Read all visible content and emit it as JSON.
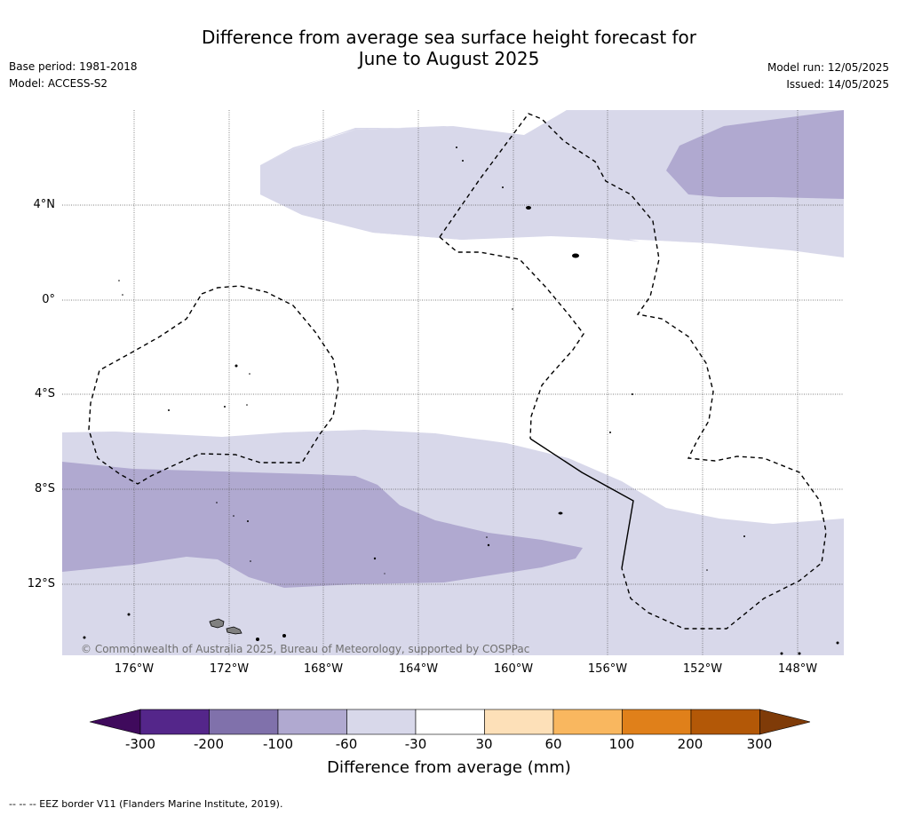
{
  "title_line1": "Difference from average sea surface height forecast for",
  "title_line2": "June to August 2025",
  "base_period": "Base period: 1981-2018",
  "model": "Model: ACCESS-S2",
  "model_run": "Model run: 12/05/2025",
  "issued": "Issued: 14/05/2025",
  "copyright": "© Commonwealth of Australia 2025, Bureau of Meteorology, supported by COSPPac",
  "lat_labels": [
    "4°N",
    "0°",
    "4°S",
    "8°S",
    "12°S"
  ],
  "lon_labels": [
    "176°W",
    "172°W",
    "168°W",
    "164°W",
    "160°W",
    "156°W",
    "152°W",
    "148°W"
  ],
  "colorbar": {
    "title": "Difference from average (mm)",
    "ticks": [
      "-300",
      "-200",
      "-100",
      "-60",
      "-30",
      "30",
      "60",
      "100",
      "200",
      "300"
    ],
    "colors": [
      "#3f0a5c",
      "#54268a",
      "#8071ab",
      "#b0a9d0",
      "#d8d8ea",
      "#ffffff",
      "#fde0b8",
      "#f9b75f",
      "#e0801a",
      "#b35807",
      "#7f3b08"
    ]
  },
  "footnote": "--  --  -- EEZ border V11 (Flanders Marine Institute, 2019)."
}
